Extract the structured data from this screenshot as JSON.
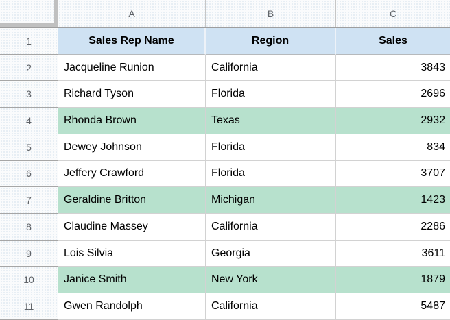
{
  "colors": {
    "band_green": "#b7e1cd",
    "header_blue": "#cfe2f3",
    "grid_line": "#d2d2d2",
    "header_grid_line": "#a6a6a6",
    "header_text_gray": "#5f6368",
    "corner_bar_gray": "#c0c0c0"
  },
  "column_headers": [
    "A",
    "B",
    "C"
  ],
  "header_row": {
    "row_number": "1",
    "cells": [
      "Sales Rep Name",
      "Region",
      "Sales"
    ]
  },
  "rows": [
    {
      "row_number": "2",
      "name": "Jacqueline Runion",
      "region": "California",
      "sales": "3843",
      "banded": false
    },
    {
      "row_number": "3",
      "name": "Richard Tyson",
      "region": "Florida",
      "sales": "2696",
      "banded": false
    },
    {
      "row_number": "4",
      "name": "Rhonda Brown",
      "region": "Texas",
      "sales": "2932",
      "banded": true
    },
    {
      "row_number": "5",
      "name": "Dewey Johnson",
      "region": "Florida",
      "sales": "834",
      "banded": false
    },
    {
      "row_number": "6",
      "name": "Jeffery Crawford",
      "region": "Florida",
      "sales": "3707",
      "banded": false
    },
    {
      "row_number": "7",
      "name": "Geraldine Britton",
      "region": "Michigan",
      "sales": "1423",
      "banded": true
    },
    {
      "row_number": "8",
      "name": "Claudine Massey",
      "region": "California",
      "sales": "2286",
      "banded": false
    },
    {
      "row_number": "9",
      "name": "Lois Silvia",
      "region": "Georgia",
      "sales": "3611",
      "banded": false
    },
    {
      "row_number": "10",
      "name": "Janice Smith",
      "region": "New York",
      "sales": "1879",
      "banded": true
    },
    {
      "row_number": "11",
      "name": "Gwen Randolph",
      "region": "California",
      "sales": "5487",
      "banded": false
    }
  ]
}
